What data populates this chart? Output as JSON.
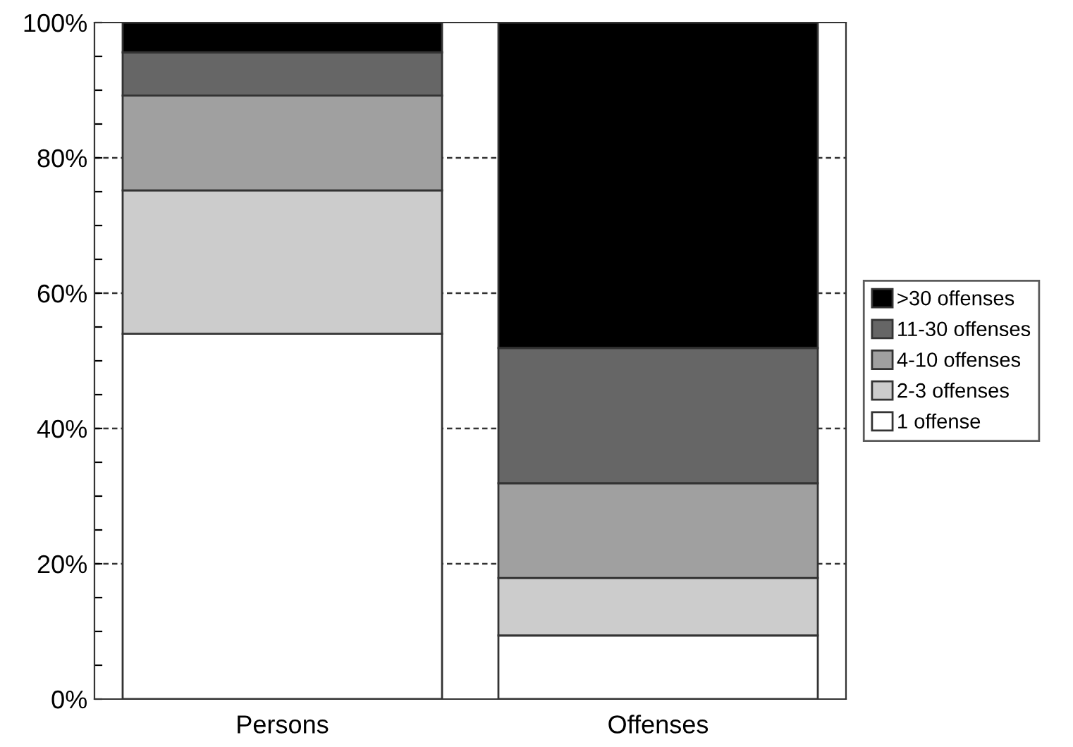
{
  "chart_data": {
    "type": "bar",
    "stacked": true,
    "categories": [
      "Persons",
      "Offenses"
    ],
    "series": [
      {
        "name": "1 offense",
        "color": "#ffffff",
        "values": [
          54,
          9.4
        ]
      },
      {
        "name": "2-3 offenses",
        "color": "#cccccc",
        "values": [
          21.2,
          8.5
        ]
      },
      {
        "name": "4-10 offenses",
        "color": "#a0a0a0",
        "values": [
          14,
          14
        ]
      },
      {
        "name": "11-30 offenses",
        "color": "#666666",
        "values": [
          6.4,
          20
        ]
      },
      {
        "name": ">30 offenses",
        "color": "#000000",
        "values": [
          4.4,
          48.1
        ]
      }
    ],
    "ylim": [
      0,
      100
    ],
    "yticks": [
      {
        "value": 0,
        "label": "0%"
      },
      {
        "value": 5,
        "label": null
      },
      {
        "value": 10,
        "label": null
      },
      {
        "value": 15,
        "label": null
      },
      {
        "value": 20,
        "label": "20%"
      },
      {
        "value": 25,
        "label": null
      },
      {
        "value": 30,
        "label": null
      },
      {
        "value": 35,
        "label": null
      },
      {
        "value": 40,
        "label": "40%"
      },
      {
        "value": 45,
        "label": null
      },
      {
        "value": 50,
        "label": null
      },
      {
        "value": 55,
        "label": null
      },
      {
        "value": 60,
        "label": "60%"
      },
      {
        "value": 65,
        "label": null
      },
      {
        "value": 70,
        "label": null
      },
      {
        "value": 75,
        "label": null
      },
      {
        "value": 80,
        "label": "80%"
      },
      {
        "value": 85,
        "label": null
      },
      {
        "value": 90,
        "label": null
      },
      {
        "value": 95,
        "label": null
      },
      {
        "value": 100,
        "label": "100%"
      }
    ],
    "grid": "y",
    "legend": "right"
  }
}
